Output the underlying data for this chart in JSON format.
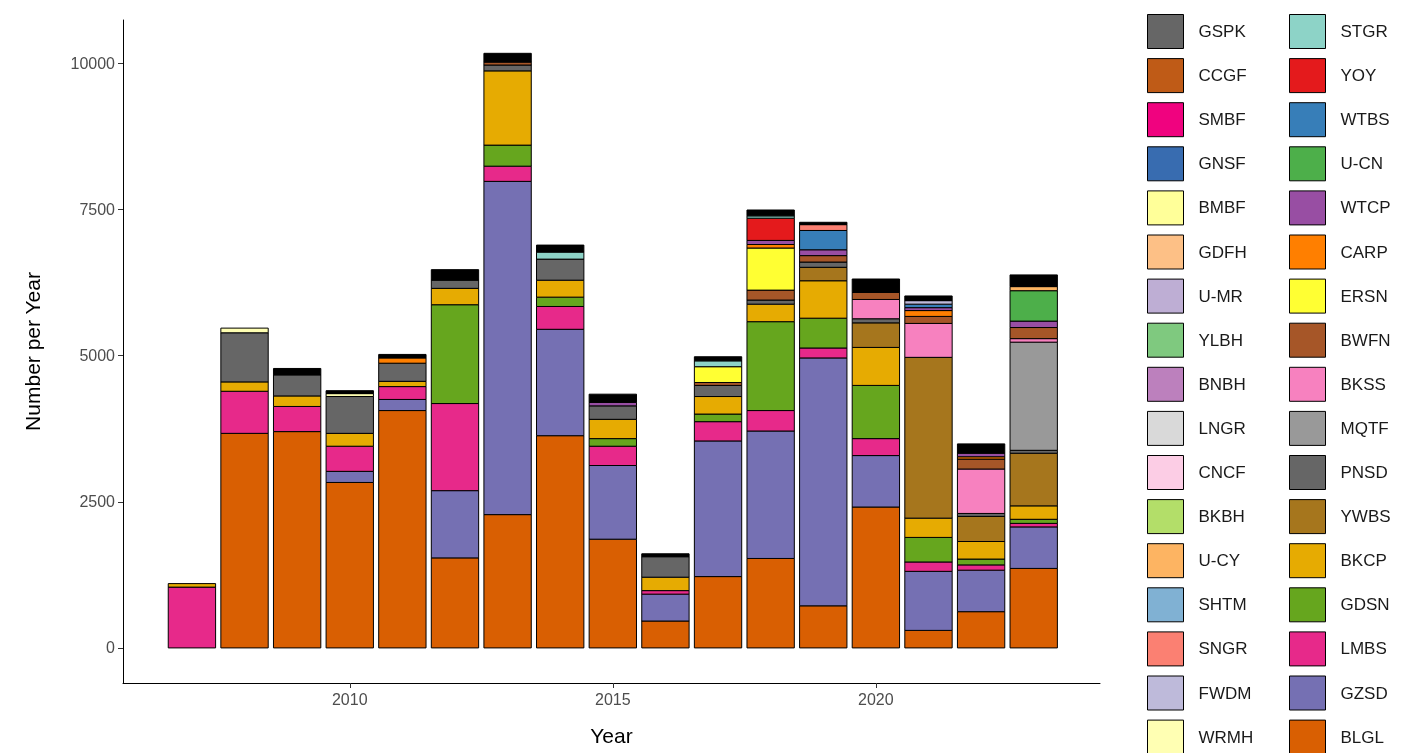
{
  "chart_data": {
    "type": "bar",
    "stacked": true,
    "xlabel": "Year",
    "ylabel": "Number per Year",
    "x": [
      2007,
      2008,
      2009,
      2010,
      2011,
      2012,
      2013,
      2014,
      2015,
      2016,
      2017,
      2018,
      2019,
      2020,
      2021,
      2022,
      2023
    ],
    "xlim": [
      2005.69,
      2024.26
    ],
    "xticks": [
      2010,
      2015,
      2020
    ],
    "ylim": [
      -600,
      10740
    ],
    "yticks": [
      0,
      2500,
      5000,
      7500,
      10000
    ],
    "grid": false,
    "legend": "right",
    "series": [
      {
        "name": "BLGL",
        "color": "#d95f02",
        "values": [
          null,
          3670,
          3700,
          2830,
          4060,
          1540,
          2280,
          3630,
          1860,
          460,
          1220,
          1530,
          720,
          2410,
          300,
          620,
          1360
        ]
      },
      {
        "name": "GZSD",
        "color": "#7570b3",
        "values": [
          null,
          null,
          null,
          190,
          190,
          1150,
          5700,
          1820,
          1260,
          460,
          2320,
          2180,
          4240,
          880,
          1010,
          710,
          710
        ]
      },
      {
        "name": "LMBS",
        "color": "#e7298a",
        "values": [
          1040,
          720,
          430,
          430,
          220,
          1490,
          260,
          390,
          330,
          60,
          330,
          350,
          170,
          290,
          160,
          90,
          60
        ]
      },
      {
        "name": "GDSN",
        "color": "#66a61e",
        "values": [
          null,
          null,
          null,
          null,
          null,
          1690,
          360,
          160,
          130,
          null,
          130,
          1520,
          510,
          910,
          420,
          100,
          70
        ]
      },
      {
        "name": "BKCP",
        "color": "#e6ab02",
        "values": [
          60,
          160,
          180,
          220,
          90,
          280,
          1270,
          290,
          330,
          230,
          300,
          300,
          640,
          650,
          330,
          300,
          230
        ]
      },
      {
        "name": "YWBS",
        "color": "#a6761d",
        "values": [
          null,
          null,
          null,
          null,
          null,
          null,
          null,
          null,
          null,
          null,
          null,
          null,
          230,
          420,
          2750,
          430,
          900
        ]
      },
      {
        "name": "PNSD",
        "color": "#666666",
        "values": [
          null,
          840,
          360,
          630,
          310,
          140,
          100,
          360,
          230,
          350,
          190,
          70,
          90,
          70,
          null,
          50,
          50
        ]
      },
      {
        "name": "MQTF",
        "color": "#999999",
        "values": [
          null,
          null,
          null,
          null,
          null,
          null,
          null,
          null,
          null,
          null,
          null,
          null,
          null,
          null,
          null,
          null,
          1850
        ]
      },
      {
        "name": "BKSS",
        "color": "#f781bf",
        "values": [
          null,
          null,
          null,
          null,
          null,
          null,
          null,
          null,
          null,
          null,
          null,
          null,
          null,
          330,
          580,
          760,
          60
        ]
      },
      {
        "name": "BWFN",
        "color": "#a65628",
        "values": [
          null,
          null,
          null,
          null,
          null,
          null,
          50,
          null,
          null,
          null,
          50,
          170,
          110,
          120,
          120,
          170,
          190
        ]
      },
      {
        "name": "ERSN",
        "color": "#ffff33",
        "values": [
          null,
          null,
          null,
          null,
          null,
          null,
          null,
          null,
          null,
          null,
          270,
          720,
          null,
          null,
          null,
          null,
          null
        ]
      },
      {
        "name": "CARP",
        "color": "#ff7f00",
        "values": [
          null,
          null,
          null,
          null,
          90,
          null,
          null,
          null,
          null,
          null,
          null,
          60,
          null,
          null,
          100,
          40,
          null
        ]
      },
      {
        "name": "WTCP",
        "color": "#984ea3",
        "values": [
          null,
          null,
          null,
          null,
          null,
          null,
          null,
          null,
          60,
          null,
          null,
          70,
          100,
          null,
          50,
          60,
          110
        ]
      },
      {
        "name": "U-CN",
        "color": "#4daf4a",
        "values": [
          null,
          null,
          null,
          null,
          null,
          null,
          null,
          null,
          null,
          null,
          null,
          null,
          null,
          null,
          null,
          null,
          520
        ]
      },
      {
        "name": "WTBS",
        "color": "#377eb8",
        "values": [
          null,
          null,
          null,
          null,
          null,
          null,
          null,
          null,
          null,
          null,
          null,
          null,
          330,
          null,
          60,
          null,
          null
        ]
      },
      {
        "name": "YOY",
        "color": "#e41a1c",
        "values": [
          null,
          null,
          null,
          null,
          null,
          null,
          null,
          null,
          null,
          null,
          null,
          380,
          null,
          null,
          null,
          null,
          null
        ]
      },
      {
        "name": "STGR",
        "color": "#8dd3c7",
        "values": [
          null,
          null,
          null,
          null,
          null,
          null,
          null,
          120,
          null,
          null,
          100,
          40,
          null,
          null,
          null,
          null,
          null
        ]
      },
      {
        "name": "WRMH",
        "color": "#ffffb3",
        "values": [
          null,
          80,
          null,
          50,
          null,
          null,
          null,
          null,
          null,
          null,
          null,
          null,
          null,
          null,
          null,
          null,
          null
        ]
      },
      {
        "name": "FWDM",
        "color": "#bebada",
        "values": [
          null,
          null,
          null,
          null,
          null,
          null,
          null,
          null,
          null,
          null,
          null,
          null,
          null,
          null,
          60,
          null,
          null
        ]
      },
      {
        "name": "SNGR",
        "color": "#fb8072",
        "values": [
          null,
          null,
          null,
          null,
          null,
          null,
          null,
          null,
          null,
          null,
          null,
          null,
          100,
          null,
          null,
          null,
          null
        ]
      },
      {
        "name": "SHTM",
        "color": "#80b1d3",
        "values": [
          null,
          null,
          null,
          null,
          null,
          null,
          null,
          null,
          null,
          null,
          null,
          null,
          null,
          null,
          null,
          null,
          null
        ]
      },
      {
        "name": "U-CY",
        "color": "#fdb462",
        "values": [
          null,
          null,
          null,
          null,
          null,
          null,
          null,
          null,
          null,
          null,
          null,
          null,
          null,
          null,
          null,
          null,
          70
        ]
      },
      {
        "name": "BKBH",
        "color": "#b3de69",
        "values": [
          null,
          null,
          null,
          null,
          null,
          null,
          null,
          null,
          null,
          null,
          null,
          null,
          null,
          null,
          null,
          null,
          null
        ]
      },
      {
        "name": "CNCF",
        "color": "#fccde5",
        "values": [
          null,
          null,
          null,
          null,
          null,
          null,
          null,
          null,
          null,
          null,
          null,
          null,
          null,
          null,
          null,
          null,
          null
        ]
      },
      {
        "name": "LNGR",
        "color": "#d9d9d9",
        "values": [
          null,
          null,
          null,
          null,
          null,
          null,
          null,
          null,
          null,
          null,
          null,
          null,
          null,
          null,
          null,
          null,
          null
        ]
      },
      {
        "name": "BNBH",
        "color": "#bc80bd",
        "values": [
          null,
          null,
          null,
          null,
          null,
          null,
          null,
          null,
          null,
          null,
          null,
          null,
          null,
          null,
          null,
          null,
          null
        ]
      },
      {
        "name": "YLBH",
        "color": "#7fc97f",
        "values": [
          null,
          null,
          null,
          null,
          null,
          null,
          null,
          null,
          null,
          null,
          null,
          null,
          null,
          null,
          null,
          null,
          null
        ]
      },
      {
        "name": "U-MR",
        "color": "#beaed4",
        "values": [
          null,
          null,
          null,
          null,
          null,
          null,
          null,
          null,
          null,
          null,
          null,
          null,
          null,
          null,
          null,
          null,
          null
        ]
      },
      {
        "name": "GDFH",
        "color": "#fdc086",
        "values": [
          null,
          null,
          null,
          null,
          null,
          null,
          null,
          null,
          null,
          null,
          null,
          null,
          null,
          null,
          null,
          null,
          null
        ]
      },
      {
        "name": "BMBF",
        "color": "#ffff99",
        "values": [
          null,
          null,
          null,
          null,
          null,
          null,
          null,
          null,
          null,
          null,
          null,
          null,
          null,
          null,
          null,
          null,
          null
        ]
      },
      {
        "name": "GNSF",
        "color": "#386cb0",
        "values": [
          null,
          null,
          null,
          null,
          null,
          null,
          null,
          null,
          null,
          null,
          null,
          null,
          null,
          null,
          null,
          null,
          null
        ]
      },
      {
        "name": "SMBF",
        "color": "#f0027f",
        "values": [
          null,
          null,
          null,
          null,
          null,
          null,
          null,
          null,
          null,
          null,
          null,
          null,
          null,
          null,
          null,
          null,
          null
        ]
      },
      {
        "name": "CCGF",
        "color": "#bf5b17",
        "values": [
          null,
          null,
          null,
          null,
          null,
          null,
          null,
          null,
          null,
          null,
          null,
          null,
          null,
          null,
          null,
          null,
          null
        ]
      },
      {
        "name": "GSPK",
        "color": "#666666",
        "values": [
          null,
          null,
          null,
          null,
          null,
          null,
          null,
          null,
          null,
          null,
          null,
          null,
          null,
          null,
          null,
          null,
          null
        ]
      },
      {
        "color": "#000000",
        "values": [
          null,
          null,
          110,
          50,
          60,
          180,
          150,
          120,
          140,
          50,
          70,
          100,
          40,
          230,
          80,
          160,
          200
        ]
      }
    ]
  }
}
